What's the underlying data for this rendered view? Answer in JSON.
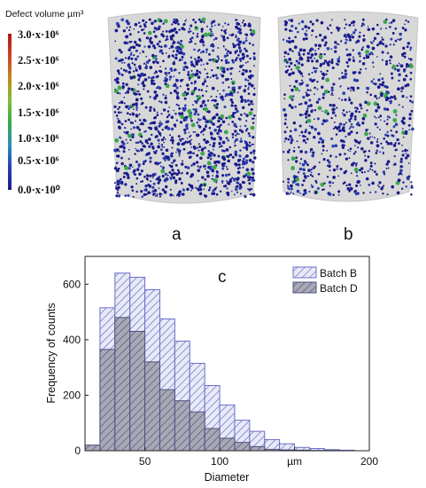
{
  "colorbar": {
    "title": "Defect volume µm³",
    "ticks": [
      "3.0·x·10⁶",
      "2.5·x·10⁶",
      "2.0·x·10⁶",
      "1.5·x·10⁶",
      "1.0·x·10⁶",
      "0.5·x·10⁶",
      "0.0·x·10⁰"
    ],
    "colors": [
      "#1a1a8c",
      "#2b3fb0",
      "#2a8fc0",
      "#3aa84a",
      "#7fbf3a",
      "#c28a1a",
      "#d0402a",
      "#b01818"
    ]
  },
  "panels": {
    "a": "a",
    "b": "b",
    "c": "c"
  },
  "chart_data": {
    "type": "bar",
    "xlabel": "Diameter",
    "ylabel": "Frequency of counts",
    "xlim": [
      10,
      200
    ],
    "ylim": [
      0,
      700
    ],
    "x_ticks": [
      "50",
      "100",
      "µm",
      "200"
    ],
    "y_ticks": [
      "0",
      "200",
      "400",
      "600"
    ],
    "bin_width": 10,
    "bin_starts": [
      10,
      20,
      30,
      40,
      50,
      60,
      70,
      80,
      90,
      100,
      110,
      120,
      130,
      140,
      150,
      160,
      170,
      180
    ],
    "series": [
      {
        "name": "Batch B",
        "values": [
          20,
          515,
          640,
          625,
          580,
          475,
          395,
          315,
          235,
          165,
          110,
          70,
          40,
          25,
          12,
          8,
          4,
          2
        ],
        "color": "#6b6fc8",
        "fill": "#e6e8f6"
      },
      {
        "name": "Batch D",
        "values": [
          20,
          365,
          480,
          430,
          320,
          220,
          180,
          140,
          80,
          45,
          30,
          15,
          5,
          3,
          2,
          1,
          1,
          0
        ],
        "color": "#505080",
        "fill": "#a8a8b4"
      }
    ]
  }
}
